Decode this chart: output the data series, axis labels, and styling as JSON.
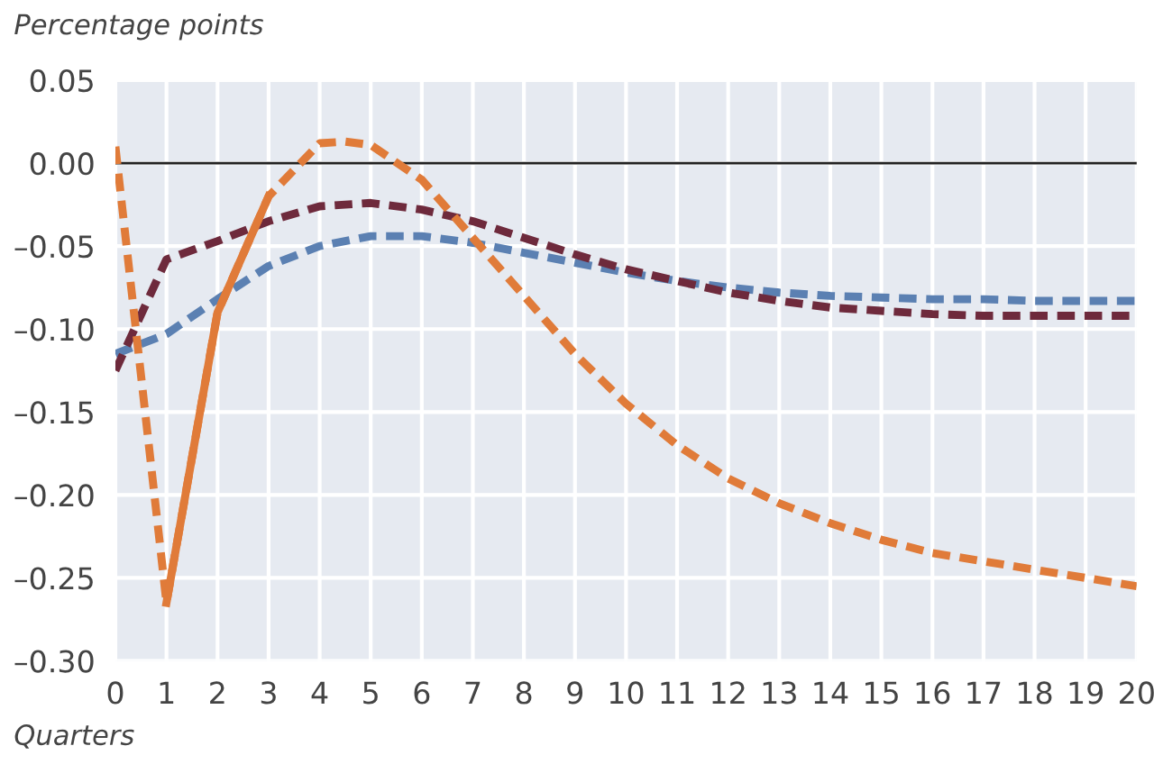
{
  "chart_data": {
    "type": "line",
    "ylabel": "Percentage points",
    "xlabel": "Quarters",
    "xlim": [
      0,
      20
    ],
    "xticks": [
      0,
      1,
      2,
      3,
      4,
      5,
      6,
      7,
      8,
      9,
      10,
      11,
      12,
      13,
      14,
      15,
      16,
      17,
      18,
      19,
      20
    ],
    "ylim": [
      -0.3,
      0.05
    ],
    "yticks": [
      {
        "value": 0.05,
        "label": "0.05"
      },
      {
        "value": 0.0,
        "label": "0.00"
      },
      {
        "value": -0.05,
        "label": "–0.05"
      },
      {
        "value": -0.1,
        "label": "–0.10"
      },
      {
        "value": -0.15,
        "label": "–0.15"
      },
      {
        "value": -0.2,
        "label": "–0.20"
      },
      {
        "value": -0.25,
        "label": "–0.25"
      },
      {
        "value": -0.3,
        "label": "–0.30"
      }
    ],
    "grid": true,
    "legend": false,
    "ref_lines": [
      {
        "axis": "y",
        "value": 0,
        "color": "#222222",
        "line_style": "solid"
      }
    ],
    "series": [
      {
        "color": "#5b80b2",
        "line_style": "dashed",
        "x": [
          0,
          1,
          2,
          3,
          4,
          5,
          6,
          7,
          8,
          9,
          10,
          11,
          12,
          13,
          14,
          15,
          16,
          17,
          18,
          19,
          20
        ],
        "values": [
          -0.115,
          -0.103,
          -0.082,
          -0.062,
          -0.05,
          -0.044,
          -0.044,
          -0.048,
          -0.054,
          -0.06,
          -0.066,
          -0.071,
          -0.075,
          -0.078,
          -0.08,
          -0.081,
          -0.082,
          -0.082,
          -0.083,
          -0.083,
          -0.083
        ]
      },
      {
        "color": "#6e2a3c",
        "line_style": "dashed",
        "x": [
          0,
          1,
          2,
          3,
          4,
          5,
          6,
          7,
          8,
          9,
          10,
          11,
          12,
          13,
          14,
          15,
          16,
          17,
          18,
          19,
          20
        ],
        "values": [
          -0.125,
          -0.058,
          -0.047,
          -0.035,
          -0.026,
          -0.024,
          -0.028,
          -0.035,
          -0.045,
          -0.055,
          -0.064,
          -0.071,
          -0.078,
          -0.083,
          -0.087,
          -0.089,
          -0.091,
          -0.092,
          -0.092,
          -0.092,
          -0.092
        ]
      },
      {
        "color": "#e07b39",
        "line_style": "dashed",
        "x": [
          0,
          1,
          2,
          3,
          4,
          4.5,
          5,
          6,
          7,
          8,
          9,
          10,
          11,
          12,
          13,
          14,
          15,
          16,
          17,
          18,
          19,
          20
        ],
        "values": [
          0.01,
          -0.265,
          -0.09,
          -0.02,
          0.012,
          0.013,
          0.011,
          -0.01,
          -0.045,
          -0.08,
          -0.115,
          -0.145,
          -0.17,
          -0.19,
          -0.205,
          -0.217,
          -0.227,
          -0.235,
          -0.24,
          -0.245,
          -0.25,
          -0.255
        ]
      },
      {
        "color": "#e07b39",
        "line_style": "solid",
        "x": [
          1,
          2,
          3
        ],
        "values": [
          -0.265,
          -0.09,
          -0.02
        ]
      }
    ]
  }
}
